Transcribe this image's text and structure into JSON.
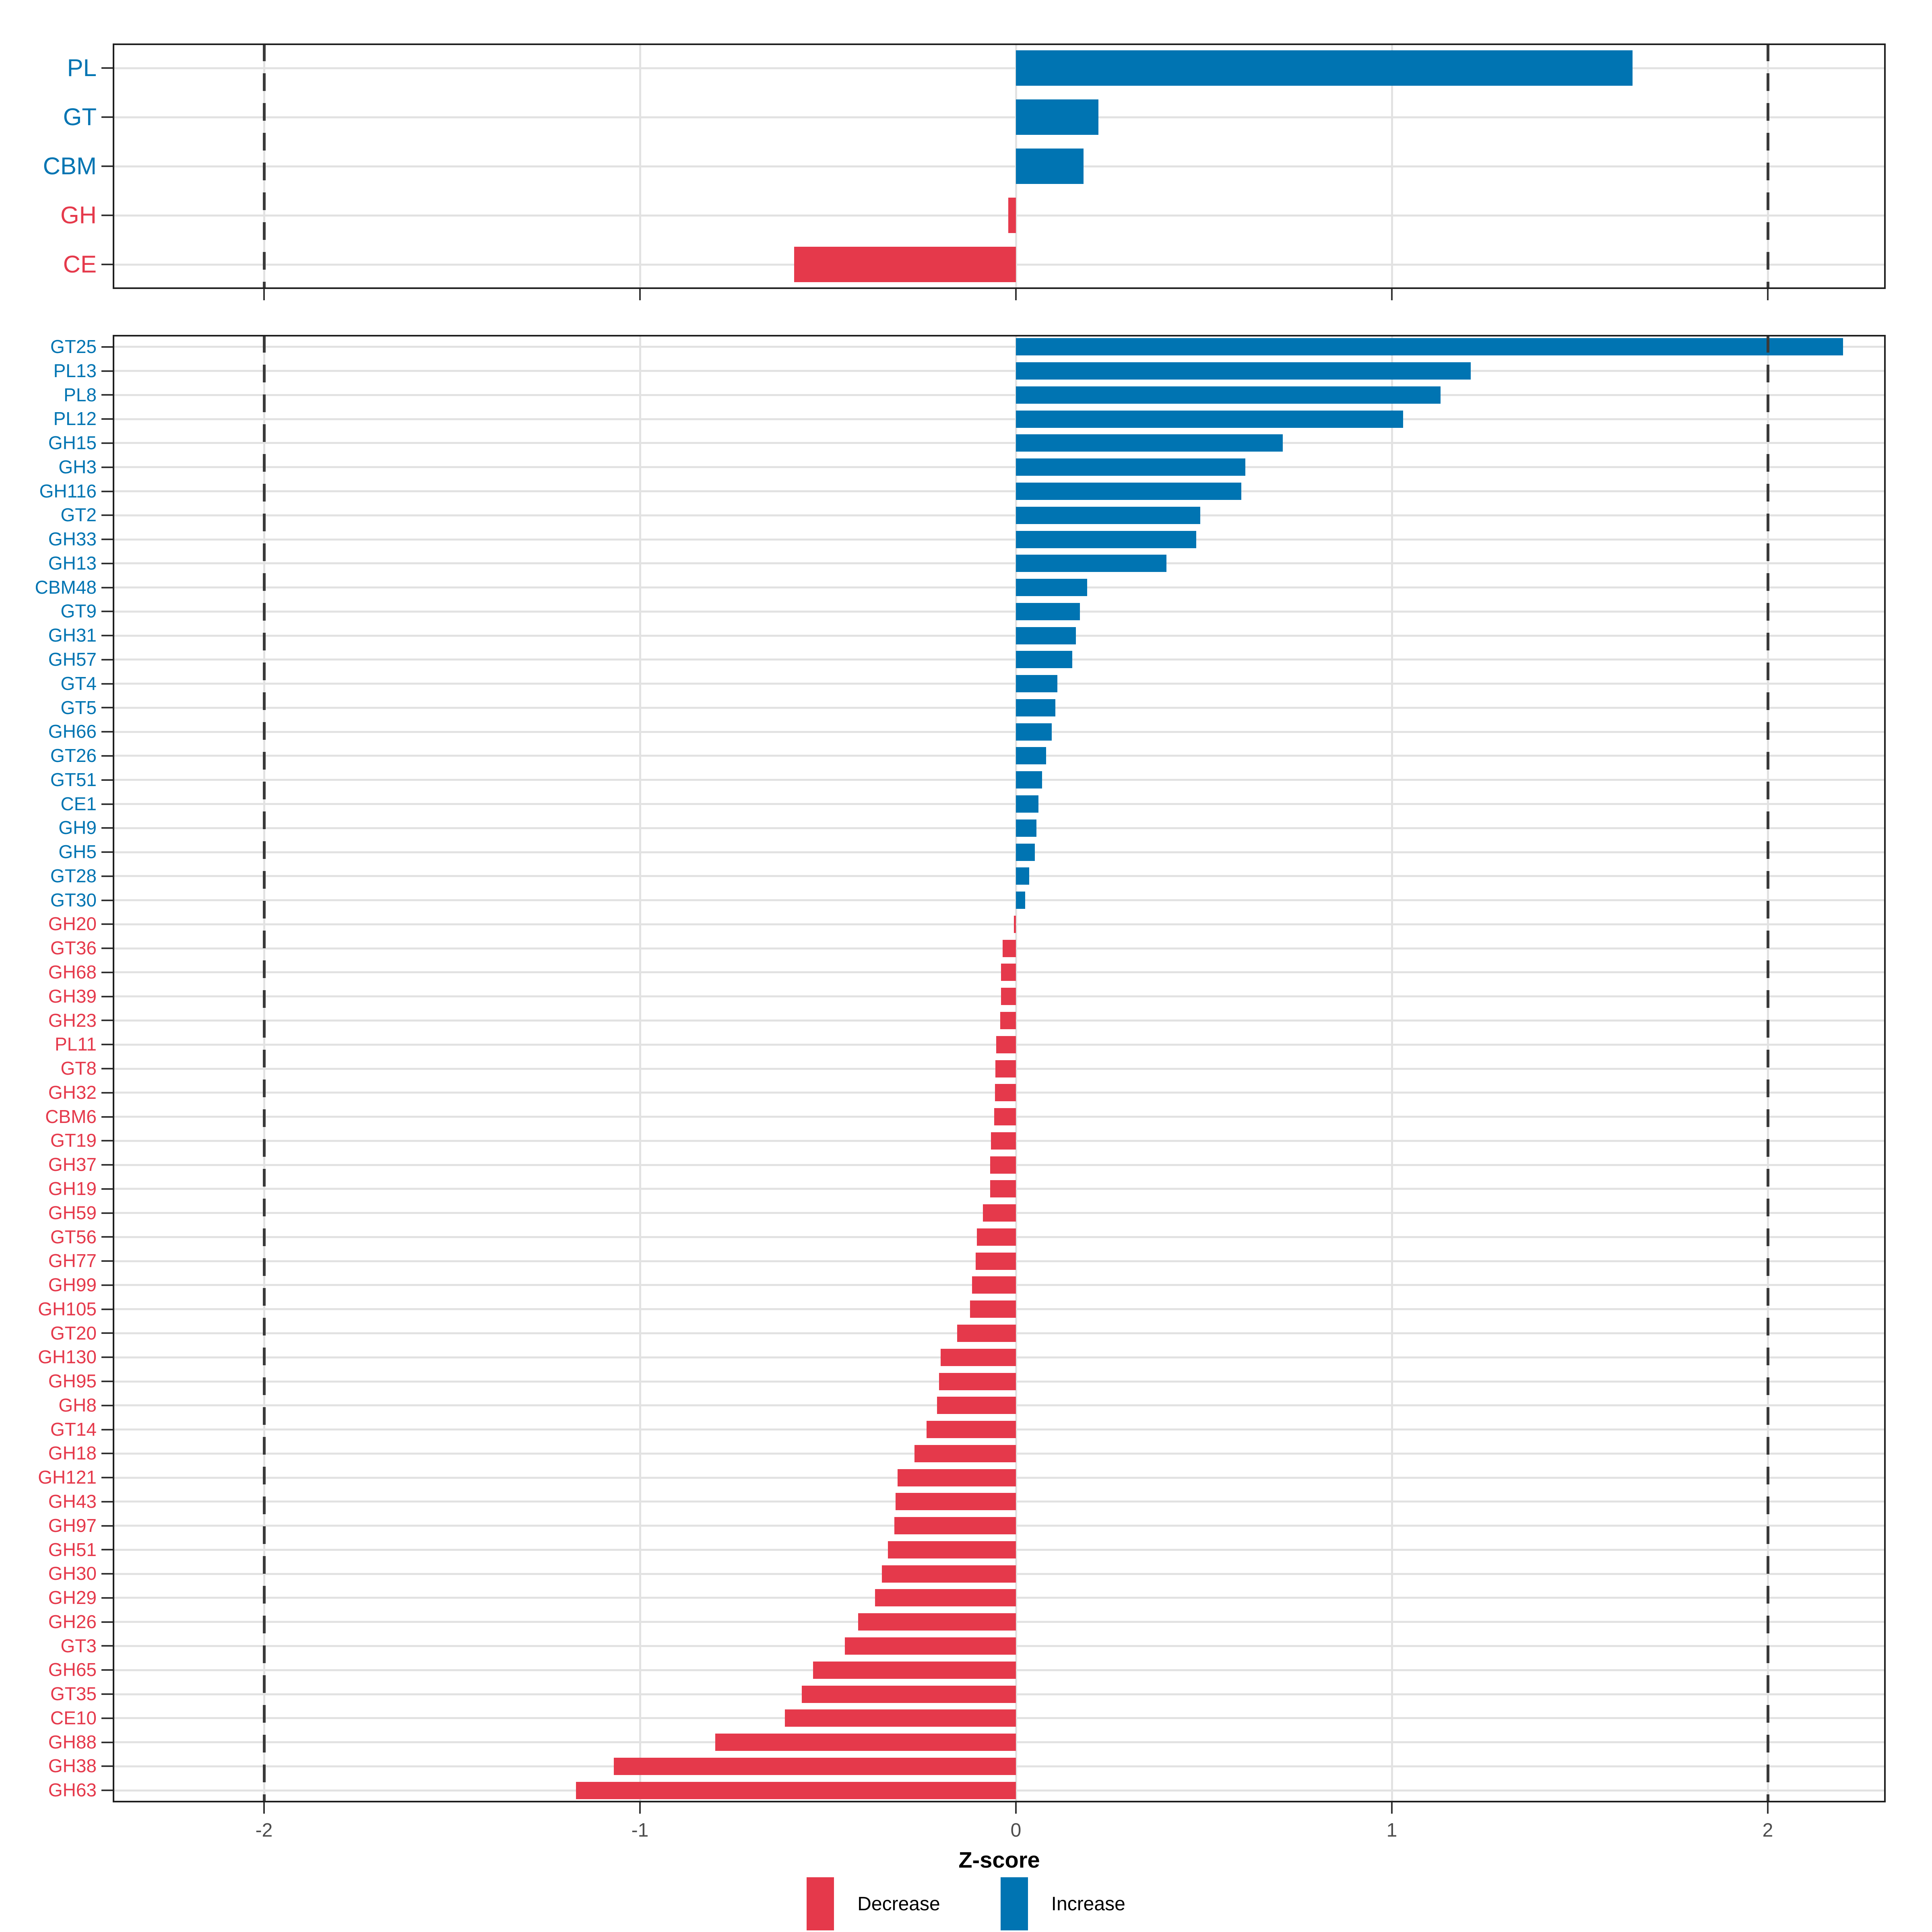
{
  "figure": {
    "xlabel": "Z-score"
  },
  "legend": {
    "items": [
      {
        "label": "Decrease",
        "color": "#e5394b"
      },
      {
        "label": "Increase",
        "color": "#0074b2"
      }
    ]
  },
  "chart_data": {
    "type": "bar",
    "orientation": "horizontal",
    "title": "",
    "xlabel": "Z-score",
    "ylabel": "",
    "xlim": [
      -2.41,
      2.31
    ],
    "x_ticks": [
      -2,
      -1,
      0,
      1,
      2
    ],
    "reference_lines_dashed": [
      -2,
      2
    ],
    "grid": "on",
    "legend_position": "bottom",
    "colors": {
      "Increase": "#0074b2",
      "Decrease": "#e5394b"
    },
    "panels": [
      {
        "name": "enzyme-classes",
        "categories": [
          "PL",
          "GT",
          "CBM",
          "GH",
          "CE"
        ],
        "values": [
          1.64,
          0.22,
          0.18,
          -0.02,
          -0.59
        ]
      },
      {
        "name": "enzyme-families",
        "categories": [
          "GT25",
          "PL13",
          "PL8",
          "PL12",
          "GH15",
          "GH3",
          "GH116",
          "GT2",
          "GH33",
          "GH13",
          "CBM48",
          "GT9",
          "GH31",
          "GH57",
          "GT4",
          "GT5",
          "GH66",
          "GT26",
          "GT51",
          "CE1",
          "GH9",
          "GH5",
          "GT28",
          "GT30",
          "GH20",
          "GT36",
          "GH68",
          "GH39",
          "GH23",
          "PL11",
          "GT8",
          "GH32",
          "CBM6",
          "GT19",
          "GH37",
          "GH19",
          "GH59",
          "GT56",
          "GH77",
          "GH99",
          "GH105",
          "GT20",
          "GH130",
          "GH95",
          "GH8",
          "GT14",
          "GH18",
          "GH121",
          "GH43",
          "GH97",
          "GH51",
          "GH30",
          "GH29",
          "GH26",
          "GT3",
          "GH65",
          "GT35",
          "CE10",
          "GH88",
          "GH38",
          "GH63"
        ],
        "values": [
          2.2,
          1.21,
          1.13,
          1.03,
          0.71,
          0.61,
          0.6,
          0.49,
          0.48,
          0.4,
          0.19,
          0.17,
          0.16,
          0.15,
          0.11,
          0.105,
          0.095,
          0.08,
          0.07,
          0.06,
          0.055,
          0.05,
          0.035,
          0.025,
          -0.005,
          -0.035,
          -0.04,
          -0.04,
          -0.042,
          -0.052,
          -0.055,
          -0.056,
          -0.058,
          -0.066,
          -0.068,
          -0.068,
          -0.088,
          -0.104,
          -0.107,
          -0.117,
          -0.122,
          -0.156,
          -0.2,
          -0.205,
          -0.21,
          -0.238,
          -0.27,
          -0.315,
          -0.32,
          -0.323,
          -0.34,
          -0.357,
          -0.375,
          -0.42,
          -0.455,
          -0.54,
          -0.57,
          -0.615,
          -0.8,
          -1.07,
          -1.17
        ]
      }
    ]
  }
}
